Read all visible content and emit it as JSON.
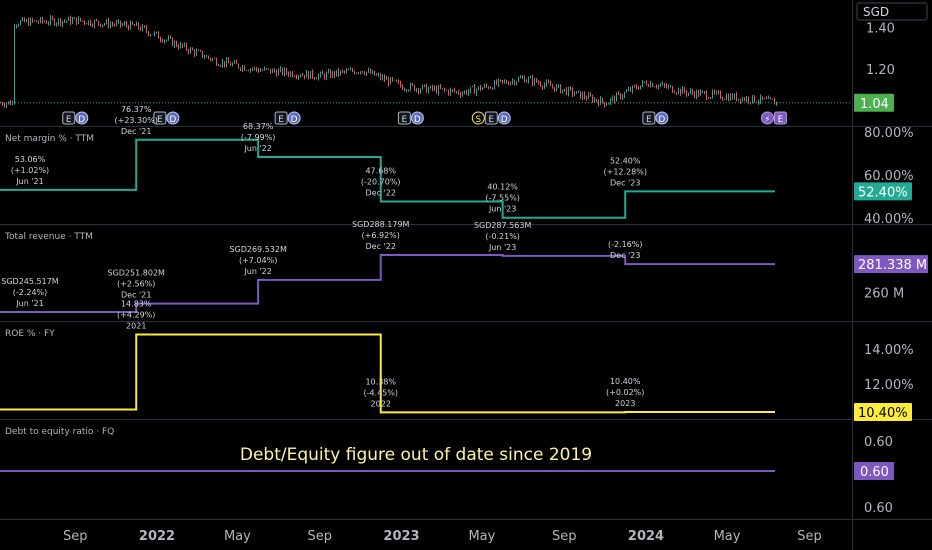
{
  "currency_label": "SGD",
  "chart_data": [
    {
      "type": "candlestick",
      "name": "price",
      "y_ticks": [
        "1.40",
        "1.20"
      ],
      "last_value_label": "1.04",
      "last_value": 1.04,
      "ylim": [
        1.0,
        1.5
      ],
      "approx_path": [
        [
          "2021-06-01",
          1.43
        ],
        [
          "2021-09-01",
          1.44
        ],
        [
          "2021-12-01",
          1.41
        ],
        [
          "2022-02-01",
          1.32
        ],
        [
          "2022-04-01",
          1.24
        ],
        [
          "2022-06-01",
          1.2
        ],
        [
          "2022-09-01",
          1.17
        ],
        [
          "2022-11-01",
          1.2
        ],
        [
          "2023-01-01",
          1.12
        ],
        [
          "2023-04-01",
          1.09
        ],
        [
          "2023-07-01",
          1.16
        ],
        [
          "2023-09-01",
          1.1
        ],
        [
          "2023-11-01",
          1.04
        ],
        [
          "2024-01-01",
          1.14
        ],
        [
          "2024-03-01",
          1.09
        ],
        [
          "2024-06-01",
          1.06
        ],
        [
          "2024-07-15",
          1.04
        ]
      ],
      "event_markers": [
        {
          "date": "2021-09-01",
          "items": [
            "E",
            "D"
          ]
        },
        {
          "date": "2022-01-15",
          "items": [
            "E",
            "D"
          ]
        },
        {
          "date": "2022-07-15",
          "items": [
            "E",
            "D"
          ]
        },
        {
          "date": "2023-01-15",
          "items": [
            "E",
            "D"
          ]
        },
        {
          "date": "2023-05-15",
          "items": [
            "S",
            "E",
            "D"
          ]
        },
        {
          "date": "2024-01-15",
          "items": [
            "E",
            "D"
          ]
        },
        {
          "date": "2024-07-10",
          "items": [
            "⚡",
            "E"
          ]
        }
      ]
    },
    {
      "type": "step-line",
      "title": "Net margin % · TTM",
      "y_ticks": [
        "80.00%",
        "60.00%",
        "40.00%"
      ],
      "current_value_label": "52.40%",
      "current_value": 52.4,
      "ylim": [
        38,
        82
      ],
      "points": [
        {
          "date": "2021-06-01",
          "value": 53.06,
          "labels": [
            "53.06%",
            "(+1.02%)",
            "Jun '21"
          ]
        },
        {
          "date": "2021-12-01",
          "value": 76.37,
          "labels": [
            "76.37%",
            "(+23.30%)",
            "Dec '21"
          ]
        },
        {
          "date": "2022-06-01",
          "value": 68.37,
          "labels": [
            "68.37%",
            "(-7.99%)",
            "Jun '22"
          ]
        },
        {
          "date": "2022-12-01",
          "value": 47.68,
          "labels": [
            "47.68%",
            "(-20.70%)",
            "Dec '22"
          ]
        },
        {
          "date": "2023-06-01",
          "value": 40.12,
          "labels": [
            "40.12%",
            "(-7.55%)",
            "Jun '23"
          ]
        },
        {
          "date": "2023-12-01",
          "value": 52.4,
          "labels": [
            "52.40%",
            "(+12.28%)",
            "Dec '23"
          ]
        }
      ]
    },
    {
      "type": "step-line",
      "title": "Total revenue · TTM",
      "y_ticks": [
        "260 M"
      ],
      "current_value_label": "281.338 M",
      "current_value": 281.338,
      "ylim": [
        242,
        297
      ],
      "points": [
        {
          "date": "2021-06-01",
          "value": 245.517,
          "labels": [
            "SGD245.517M",
            "(-2.24%)",
            "Jun '21"
          ]
        },
        {
          "date": "2021-12-01",
          "value": 251.802,
          "labels": [
            "SGD251.802M",
            "(+2.56%)",
            "Dec '21"
          ]
        },
        {
          "date": "2022-06-01",
          "value": 269.532,
          "labels": [
            "SGD269.532M",
            "(+7.04%)",
            "Jun '22"
          ]
        },
        {
          "date": "2022-12-01",
          "value": 288.179,
          "labels": [
            "SGD288.179M",
            "(+6.92%)",
            "Dec '22"
          ]
        },
        {
          "date": "2023-06-01",
          "value": 287.563,
          "labels": [
            "SGD287.563M",
            "(-0.21%)",
            "Jun '23"
          ]
        },
        {
          "date": "2023-12-01",
          "value": 281.338,
          "labels": [
            "",
            "(-2.16%)",
            "Dec '23"
          ]
        }
      ]
    },
    {
      "type": "step-line",
      "title": "ROE % · FY",
      "y_ticks": [
        "14.00%",
        "12.00%"
      ],
      "current_value_label": "10.40%",
      "current_value": 10.4,
      "ylim": [
        9.7,
        15.2
      ],
      "points": [
        {
          "date": "2020-12-01",
          "value": 10.54
        },
        {
          "date": "2021-12-01",
          "value": 14.83,
          "labels": [
            "14.83%",
            "(+4.29%)",
            "2021"
          ]
        },
        {
          "date": "2022-12-01",
          "value": 10.38,
          "labels": [
            "10.38%",
            "(-4.45%)",
            "2022"
          ]
        },
        {
          "date": "2023-12-01",
          "value": 10.4,
          "labels": [
            "10.40%",
            "(+0.02%)",
            "2023"
          ]
        }
      ]
    },
    {
      "type": "step-line",
      "title": "Debt to equity ratio · FQ",
      "y_ticks": [
        "0.60",
        "0.60"
      ],
      "current_value_label": "0.60",
      "current_value": 0.6,
      "annotation": "Debt/Equity figure out of date since 2019",
      "points": [
        {
          "date": "2021-06-01",
          "value": 0.6
        },
        {
          "date": "2024-07-15",
          "value": 0.6
        }
      ]
    }
  ],
  "x_axis": {
    "ticks": [
      {
        "date": "2021-09-01",
        "label": "Sep",
        "bold": false
      },
      {
        "date": "2022-01-01",
        "label": "2022",
        "bold": true
      },
      {
        "date": "2022-05-01",
        "label": "May",
        "bold": false
      },
      {
        "date": "2022-09-01",
        "label": "Sep",
        "bold": false
      },
      {
        "date": "2023-01-01",
        "label": "2023",
        "bold": true
      },
      {
        "date": "2023-05-01",
        "label": "May",
        "bold": false
      },
      {
        "date": "2023-09-01",
        "label": "Sep",
        "bold": false
      },
      {
        "date": "2024-01-01",
        "label": "2024",
        "bold": true
      },
      {
        "date": "2024-05-01",
        "label": "May",
        "bold": false
      },
      {
        "date": "2024-09-01",
        "label": "Sep",
        "bold": false
      }
    ]
  },
  "colors": {
    "price": "#26a69a",
    "net_margin": "#22ab94",
    "revenue": "#7e57c2",
    "roe": "#ffeb3b",
    "debt_equity": "#7e57c2",
    "annotation": "#fff59d"
  }
}
